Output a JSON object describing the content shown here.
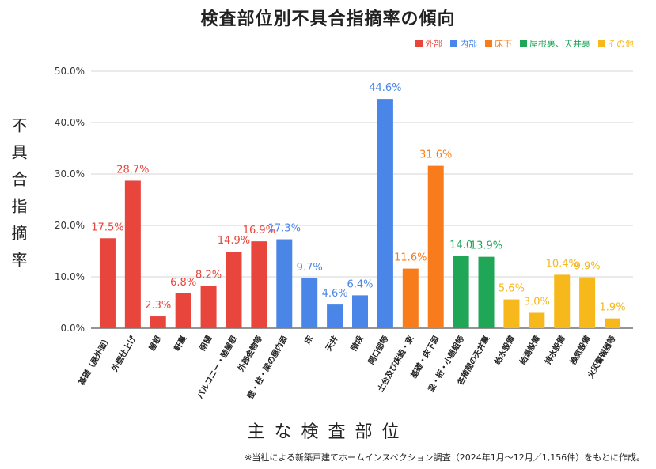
{
  "footnote": "※当社による新築戸建てホームインスペクション調査（2024年1月〜12月／1,156件）をもとに作成。",
  "colors": {
    "外部": "#e8453c",
    "内部": "#4a86e8",
    "床下": "#f97c1c",
    "屋根裏、天井裏": "#1fa657",
    "その他": "#f6b81a"
  },
  "chart_data": {
    "type": "bar",
    "title": "検査部位別不具合指摘率の傾向",
    "xlabel": "主な検査部位",
    "ylabel": "不具合指摘率",
    "ylim": [
      0,
      50
    ],
    "y_ticks": [
      "0.0%",
      "10.0%",
      "20.0%",
      "30.0%",
      "40.0%",
      "50.0%"
    ],
    "grid": true,
    "legend_position": "top-right",
    "legend": [
      "外部",
      "内部",
      "床下",
      "屋根裏、天井裏",
      "その他"
    ],
    "categories": [
      "基礎（屋外面）",
      "外壁仕上げ",
      "屋根",
      "軒裏",
      "雨樋",
      "バルコニー・陸屋根",
      "外部金物等",
      "壁・柱・梁の屋内面",
      "床",
      "天井",
      "階段",
      "開口部等",
      "土台及び床組・束",
      "基礎・床下面",
      "梁・桁・小屋組等",
      "各階間の天井裏",
      "給水設備",
      "給湯設備",
      "排水設備",
      "換気設備",
      "火災警報器等"
    ],
    "values": [
      17.5,
      28.7,
      2.3,
      6.8,
      8.2,
      14.9,
      16.9,
      17.3,
      9.7,
      4.6,
      6.4,
      44.6,
      11.6,
      31.6,
      14.0,
      13.9,
      5.6,
      3.0,
      10.4,
      9.9,
      1.9
    ],
    "labels": [
      "17.5%",
      "28.7%",
      "2.3%",
      "6.8%",
      "8.2%",
      "14.9%",
      "16.9%",
      "17.3%",
      "9.7%",
      "4.6%",
      "6.4%",
      "44.6%",
      "11.6%",
      "31.6%",
      "14.0",
      "13.9%",
      "5.6%",
      "3.0%",
      "10.4%",
      "9.9%",
      "1.9%"
    ],
    "groups": [
      "外部",
      "外部",
      "外部",
      "外部",
      "外部",
      "外部",
      "外部",
      "内部",
      "内部",
      "内部",
      "内部",
      "内部",
      "床下",
      "床下",
      "屋根裏、天井裏",
      "屋根裏、天井裏",
      "その他",
      "その他",
      "その他",
      "その他",
      "その他"
    ]
  }
}
